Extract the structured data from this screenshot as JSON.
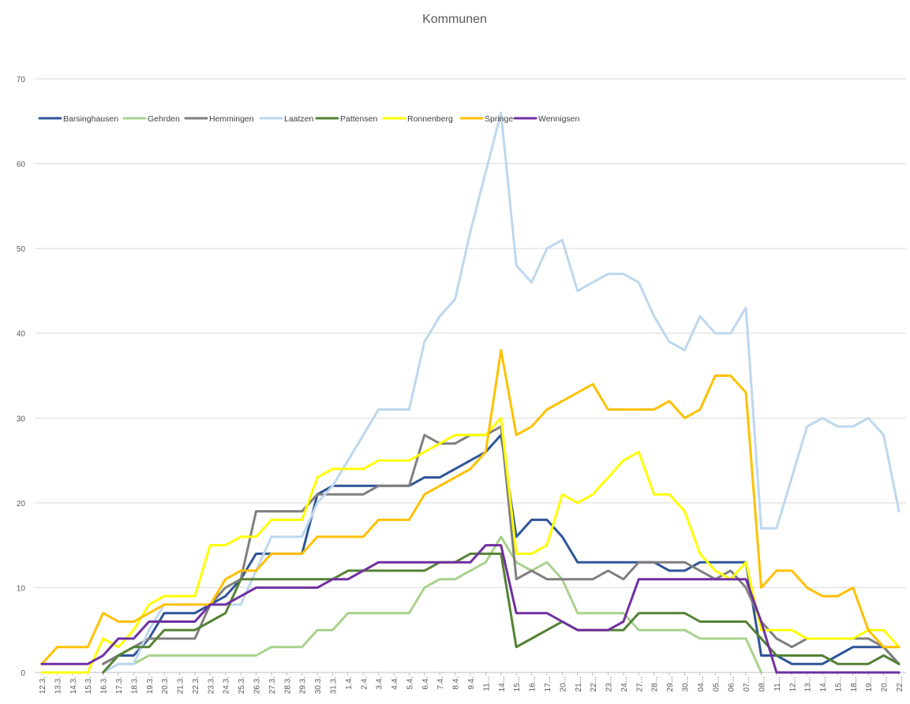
{
  "chart_data": {
    "type": "line",
    "title": "Kommunen",
    "xlabel": "",
    "ylabel": "",
    "ylim": [
      0,
      70
    ],
    "yticks": [
      0,
      10,
      20,
      30,
      40,
      50,
      60,
      70
    ],
    "grid": "horizontal",
    "legend_position": "top-left",
    "categories": [
      "12.3.",
      "13.3.",
      "14.3.",
      "15.3.",
      "16.3.",
      "17.3.",
      "18.3.",
      "19.3.",
      "20.3.",
      "21.3.",
      "22.3.",
      "23.3.",
      "24.3.",
      "25.3.",
      "26.3.",
      "27.3.",
      "28.3.",
      "29.3.",
      "30.3.",
      "31.3.",
      "1.4.",
      "2.4.",
      "3.4.",
      "4.4.",
      "5.4.",
      "6.4.",
      "7.4.",
      "8.4.",
      "9.4.",
      "11...",
      "14...",
      "15...",
      "16...",
      "17...",
      "20...",
      "21...",
      "22...",
      "23...",
      "24...",
      "27...",
      "28...",
      "29...",
      "30...",
      "04...",
      "05...",
      "06...",
      "07...",
      "08...",
      "11...",
      "12...",
      "13...",
      "14...",
      "15...",
      "18...",
      "19...",
      "20...",
      "22..."
    ],
    "series": [
      {
        "name": "Barsinghausen",
        "color": "#2f5597",
        "values": [
          null,
          null,
          null,
          null,
          1,
          2,
          2,
          4,
          7,
          7,
          7,
          8,
          9,
          11,
          14,
          14,
          14,
          14,
          21,
          22,
          22,
          22,
          22,
          22,
          22,
          23,
          23,
          24,
          25,
          26,
          28,
          16,
          18,
          18,
          16,
          13,
          13,
          13,
          13,
          13,
          13,
          12,
          12,
          13,
          13,
          13,
          13,
          2,
          2,
          1,
          1,
          1,
          2,
          3,
          3,
          3,
          1
        ]
      },
      {
        "name": "Gehrden",
        "color": "#a9d18e",
        "values": [
          null,
          null,
          null,
          null,
          0,
          1,
          1,
          2,
          2,
          2,
          2,
          2,
          2,
          2,
          2,
          3,
          3,
          3,
          5,
          5,
          7,
          7,
          7,
          7,
          7,
          10,
          11,
          11,
          12,
          13,
          16,
          13,
          12,
          13,
          11,
          7,
          7,
          7,
          7,
          5,
          5,
          5,
          5,
          4,
          4,
          4,
          4,
          0,
          null,
          null,
          null,
          null,
          null,
          null,
          null,
          null,
          null
        ]
      },
      {
        "name": "Hemmingen",
        "color": "#7f7f7f",
        "values": [
          null,
          null,
          null,
          null,
          1,
          2,
          3,
          4,
          4,
          4,
          4,
          8,
          10,
          11,
          19,
          19,
          19,
          19,
          21,
          21,
          21,
          21,
          22,
          22,
          22,
          28,
          27,
          27,
          28,
          28,
          29,
          11,
          12,
          11,
          11,
          11,
          11,
          12,
          11,
          13,
          13,
          13,
          13,
          12,
          11,
          12,
          10,
          6,
          4,
          3,
          4,
          null,
          null,
          4,
          4,
          3,
          1
        ]
      },
      {
        "name": "Laatzen",
        "color": "#bdd7ee",
        "values": [
          null,
          null,
          null,
          null,
          0,
          1,
          1,
          5,
          8,
          8,
          8,
          8,
          8,
          8,
          12,
          16,
          16,
          16,
          20,
          22,
          25,
          28,
          31,
          31,
          31,
          39,
          42,
          44,
          52,
          59,
          66,
          48,
          46,
          50,
          51,
          45,
          46,
          47,
          47,
          46,
          42,
          39,
          38,
          42,
          40,
          40,
          43,
          17,
          17,
          23,
          29,
          30,
          29,
          29,
          30,
          28,
          19
        ]
      },
      {
        "name": "Pattensen",
        "color": "#548235",
        "values": [
          null,
          null,
          null,
          null,
          0,
          2,
          3,
          3,
          5,
          5,
          5,
          6,
          7,
          11,
          11,
          11,
          11,
          11,
          11,
          11,
          12,
          12,
          12,
          12,
          12,
          12,
          13,
          13,
          14,
          14,
          14,
          3,
          4,
          5,
          6,
          5,
          5,
          5,
          5,
          7,
          7,
          7,
          7,
          6,
          6,
          6,
          6,
          4,
          2,
          2,
          2,
          2,
          1,
          1,
          1,
          2,
          1
        ]
      },
      {
        "name": "Ronnenberg",
        "color": "#ffff00",
        "values": [
          0,
          0,
          0,
          0,
          4,
          3,
          5,
          8,
          9,
          9,
          9,
          15,
          15,
          16,
          16,
          18,
          18,
          18,
          23,
          24,
          24,
          24,
          25,
          25,
          25,
          26,
          27,
          28,
          28,
          28,
          30,
          14,
          14,
          15,
          21,
          20,
          21,
          23,
          25,
          26,
          21,
          21,
          19,
          14,
          12,
          11,
          13,
          5,
          5,
          5,
          4,
          4,
          4,
          4,
          5,
          5,
          3
        ]
      },
      {
        "name": "Springe",
        "color": "#ffc000",
        "values": [
          1,
          3,
          3,
          3,
          7,
          6,
          6,
          7,
          8,
          8,
          8,
          8,
          11,
          12,
          12,
          14,
          14,
          14,
          16,
          16,
          16,
          16,
          18,
          18,
          18,
          21,
          22,
          23,
          24,
          26,
          38,
          28,
          29,
          31,
          32,
          33,
          34,
          31,
          31,
          31,
          31,
          32,
          30,
          31,
          35,
          35,
          33,
          10,
          12,
          12,
          10,
          9,
          9,
          10,
          5,
          3,
          3
        ]
      },
      {
        "name": "Wennigsen",
        "color": "#7030a0",
        "values": [
          1,
          1,
          1,
          1,
          2,
          4,
          4,
          6,
          6,
          6,
          6,
          8,
          8,
          9,
          10,
          10,
          10,
          10,
          10,
          11,
          11,
          12,
          13,
          13,
          13,
          13,
          13,
          13,
          13,
          15,
          15,
          7,
          7,
          7,
          6,
          5,
          5,
          5,
          6,
          11,
          11,
          11,
          11,
          11,
          11,
          11,
          11,
          6,
          0,
          0,
          0,
          0,
          0,
          0,
          0,
          0,
          0
        ]
      }
    ]
  }
}
